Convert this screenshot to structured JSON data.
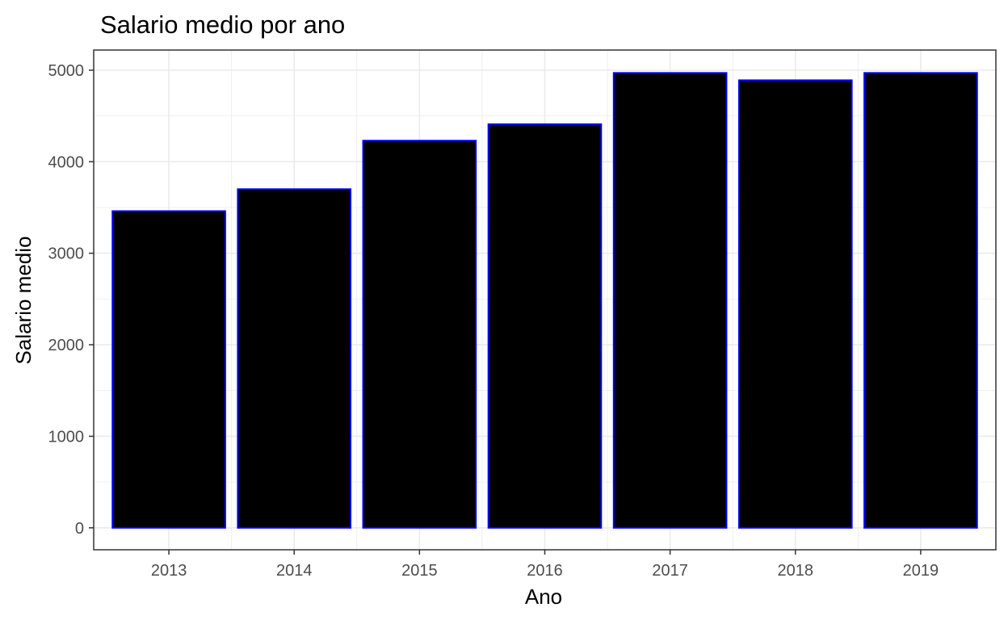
{
  "chart_data": {
    "type": "bar",
    "title": "Salario medio por ano",
    "xlabel": "Ano",
    "ylabel": "Salario medio",
    "categories": [
      "2013",
      "2014",
      "2015",
      "2016",
      "2017",
      "2018",
      "2019"
    ],
    "values": [
      3460,
      3700,
      4230,
      4410,
      4970,
      4890,
      4970
    ],
    "ylim": [
      -240,
      5220
    ],
    "yticks": [
      0,
      1000,
      2000,
      3000,
      4000,
      5000
    ],
    "grid": true,
    "legend": "none",
    "colors": {
      "bar_fill": "#000000",
      "bar_stroke": "#0000ff",
      "grid": "#ebebeb",
      "panel_border": "#333333",
      "tick_text": "#4d4d4d"
    }
  }
}
